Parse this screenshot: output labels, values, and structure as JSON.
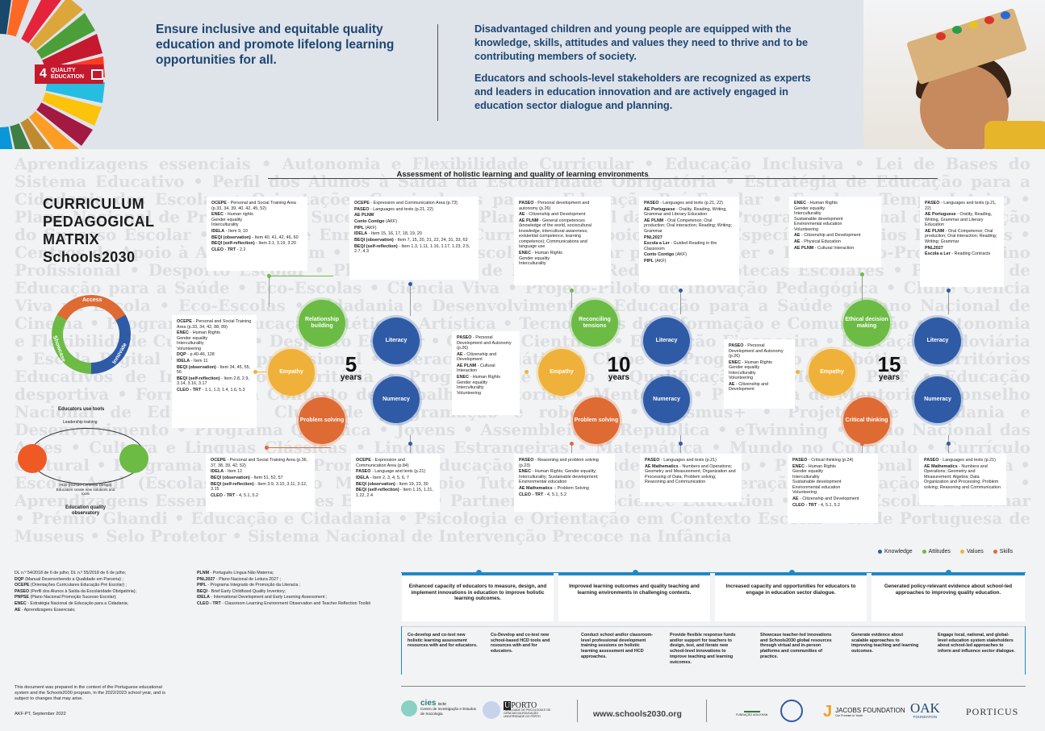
{
  "header": {
    "sdg_badge": {
      "number": "4",
      "label_line1": "QUALITY",
      "label_line2": "EDUCATION"
    },
    "goal": "Ensure inclusive and equitable quality education and promote lifelong learning opportunities for all.",
    "vision_1": "Disadvantaged children and young people are equipped with the knowledge, skills,  attitudes and values they need to thrive and to be contributing members of society.",
    "vision_2": "Educators and schools-level stakeholders are recognized as experts and leaders in education innovation and are actively engaged in education sector dialogue and planning."
  },
  "background_words": "Aprendizagens essenciais • Autonomia e Flexibilidade Curricular • Educação Inclusiva • Lei de Bases do Sistema Educativo • Perfil dos Alunos à Saída da Escolaridade Obrigatória • Estratégia de Educação para a Cidadania das Escolas • Orientações Curriculares para a Educação Pré-Escolar • Escola a Tempo Inteiro • Plano Nacional de Promoção do Sucesso Escolar • Plano Nacional das Artes • Programa Nacional de Promoção do Sucesso Escolar • Projeto de Enriquecimento Curricular • Apoio Tutorial Específico • Apoios Educativos • Centros de Apoio à Aprendizagem • Plano 21|23 Escola+ • Avaliar para aprender • Informação-Prova • Ensino Profissional • Desporto Escolar • Plano Nacional de Leitura • Rede de Bibliotecas Escolares • Programa de Educação para a Saúde • Eco-Escolas • Ciência Viva • Projeto-Piloto de Inovação Pedagógica • Clube Ciência Viva na Escola • Eco-Escolas • Cidadania e Desenvolvimento • Educação para a Saúde • Plano Nacional de Cinema • Programa de Educação Estética e Artística • Tecnologias de Informação e Comunicação • Autonomia e Flexibilidade Curricular • Desporto Escolar • Cultura Científica • Educação Financeira • Educação Rodoviária • Escola Digital • Ensino profissional • Literacia Mediática • Clube de Programação e Robótica • Territórios Educativos de Intervenção Prioritária • Programa de Apoio e Qualificação da Medida PIEF • Educação desportiva • Formação em Contexto de Trabalho • Tutorias • Mentorias • Programa de Mentoria • Conselho Nacional de Educação • Clube de programação e robótica • Erasmus+ • Projetos de Cidadania e Desenvolvimento • Programa Qualifica • Jovens • Assembleia da República • eTwinning • Plano Nacional das Artes • Cultura e Linguas Clássicas • Linguas Estrangeiras • Matemática • Mundo no Currículo • Currículo Cultural • Programa de Apoio à Promoção e Educação para a Saúde • Território • Plano Nacional de Leitura • Escola Azul (Escolas) • Roteiro Mais • Apoio Tutorial • Plano de Recuperação • Educação Especial • Aprendizagens Essenciais • Clubes Europeus • Partnerships for Science Education • Prémio Escolas a Ensinar • Prémio Ghandi • Educação e Cidadania • Psicologia e Orientação em Contexto Escolar • Rede Portuguesa de Museus • Selo Protetor • Sistema Nacional de Intervenção Precoce na Infância",
  "title": {
    "line1": "CURRICULUM",
    "line2": "PEDAGOGICAL",
    "line3": "MATRIX",
    "line4": "Schools2030"
  },
  "assessment_title": "Assessment of holistic learning and quality of learning environments",
  "cycle": {
    "access": "Access",
    "showcase": "Showcase",
    "innovate": "Innovate"
  },
  "hcd": {
    "label_top": "Educators use tools",
    "label_leadership": "Leadership training",
    "label_caption": "HCD (Human-Centered Design) Educators create new solutions and tools",
    "label_bottom": "Education quality observatory"
  },
  "circles": {
    "relationship": "Relationship building",
    "literacy": "Literacy",
    "empathy": "Empathy",
    "numeracy": "Numeracy",
    "problem": "Problem solving",
    "reconciling": "Reconciling tensions",
    "ethical": "Ethical decision making",
    "critical": "Critical thinking"
  },
  "ages": {
    "a5": "5",
    "a10": "10",
    "a15": "15",
    "unit": "years"
  },
  "cards": {
    "c5_top_left": [
      "<b>OCEPE</b> - Personal and Social Training Area (p.33, 34, 39, 40, 42, 45, 52)",
      "<b>ENEC</b> - Human rights<br>Gender equality<br>Interculturality",
      "<b>IDELA</b> - Item 9, 10",
      "<b>BEQI (observation)</b> - Item 40, 41, 42, 46, 60",
      "<b>BEQI (self-reflection)</b> - Item 3.1, 3.19, 3.20",
      "<b>CLEO - TRT</b> - 2.2"
    ],
    "c5_top_right": [
      "<b>OCEPE</b> - Expression and Communication Area (p.73)",
      "<b>PASEO</b> - Languages and texts (p.21, 22)",
      "<b>AE PLNM</b>",
      "<b>Conto Contigo</b> (AKF)",
      "<b>PIPL</b> (AKF)",
      "<b>IDELA</b> - Item 15, 16, 17, 18, 19, 20",
      "<b>BEQI (observation)</b> - Item 7, 15, 20, 21, 22, 24, 31, 33, 63",
      "<b>BEQI (self-reflection)</b> - Item 1.3, 1.11, 1.16, 1.17, 1.23, 2.5, 2.7, 4.3"
    ],
    "c5_left": [
      "<b>OCEPE</b> - Personal and Social Training Area (p.33, 34, 42, 88, 89)",
      "<b>ENEC</b> - Human Rights<br>Gender equality<br>Interculturality<br>Volunteering",
      "<b>DQP</b> - p.40-46, 128",
      "<b>IDELA</b> - Item 11",
      "<b>BEQI (observation)</b> - Item 34, 45, 55, 56",
      "<b>BEQI (self-reflection)</b> - Item 2.8, 2.9, 3.14, 3.16, 3.17",
      "<b>CLEO - TRT</b> - 1.1, 1.3, 1.4, 1.6, 5.3"
    ],
    "c5_bottom_left": [
      "<b>OCEPE</b> - Personal and Social Training Area (p.36, 37, 38, 39, 42, 52)",
      "<b>IDELA</b> - Item 12",
      "<b>BEQI (observation)</b> - Item 51, 52, 57",
      "<b>BEQI (self-reflection)</b> - Item 3.9, 3.10, 3.11, 3.12, 3.15",
      "<b>CLEO - TRT</b> - 4, 5.1, 5.2"
    ],
    "c5_bottom_right": [
      "<b>OCEPE</b> - Expression and Communication Area (p.84)",
      "<b>PASEO</b> - Language and texts (p.21)",
      "<b>IDELA</b> - Item 2, 3, 4, 5, 6, 7",
      "<b>BEQI (observation)</b> - Item 19, 23, 30",
      "<b>BEQI (self-reflection)</b> - Item 1.15, 1.21, 1.22, 2.4"
    ],
    "c10_top_left": [
      "<b>PASEO</b> - Personal development and autonomy (p.26)",
      "<b>AE</b> - Citizenship and Development",
      "<b>AE PLNM</b> - General competences (knowledge of the world, sociocultural knowledge, intercultural awareness, existential competence, learning competence); Communications and language use",
      "<b>ENEC</b> - Human Rights<br>Gender equality<br>Interculturality"
    ],
    "c10_top_right": [
      "<b>PASEO</b> - Languages and texts (p.21, 22)",
      "<b>AE Portuguese</b> - Orality, Reading, Writing, Grammar and Literary Education",
      "<b>AE PLNM</b> - Oral Competence; Oral production; Oral interaction; Reading; Writing; Grammar",
      "<b>PNL2027</b>",
      "<b>Escola a Ler</b> - Guided Reading in the Classroom",
      "<b>Conto Contigo</b> (AKF)",
      "<b>PIPL</b> (AKF)"
    ],
    "c10_left": [
      "<b>PASEO</b> - Personal Development and Autonomy (p.26)",
      "<b>AE</b> - Citizenship and Development",
      "<b>AE PLNM</b> - Cultural Interaction",
      "<b>ENEC</b> - Human Rights<br>Gender equality<br>Interculturality<br>Volunteering"
    ],
    "c10_bottom_left": [
      "<b>PASEO</b> - Reasoning and problem solving (p.23)",
      "<b>ENEC</b> - Human Rights; Gender equality; Interculturality; Sustainable development; Environmental education",
      "<b>AE Mathematics</b> – Problem Solving",
      "<b>CLEO - TRT</b> - 4, 5.1, 5.2"
    ],
    "c10_bottom_right": [
      "<b>PASEO</b> - Languages and texts (p.21)",
      "<b>AE Mathematics</b> - Numbers and Operations; Geometry and Measurement; Organization and Processing of Data; Problem solving; Reasoning and Communication"
    ],
    "c15_top_left": [
      "<b>ENEC</b> - Human Rights<br>Gender equality<br>Interculturality<br>Sustainable development<br>Environmental education<br>Volunteering",
      "<b>AE</b> - Citizenship and Development",
      "<b>AE</b> - Physical Education",
      "<b>AE PLNM</b> - Cultural Interaction"
    ],
    "c15_top_right": [
      "<b>PASEO</b> - Languages and texts (p.21, 22)",
      "<b>AE Portuguese</b> - Orality, Reading, Writing, Grammar and Literary Education",
      "<b>AE PLNM</b> - Oral Competence; Oral production; Oral interaction; Reading; Writing; Grammar",
      "<b>PNL2027</b>",
      "<b>Escola a Ler</b> - Reading Contracts"
    ],
    "c15_left": [
      "<b>PASEO</b> - Personal Development and Autonomy (p.26)",
      "<b>ENEC</b> - Human Rights<br>Gender equality<br>Interculturality<br>Volunteering",
      "<b>AE</b> - Citizenship and Development"
    ],
    "c15_bottom_left": [
      "<b>PASEO</b> - Critical thinking (p.24)",
      "<b>ENEC</b> - Human Rights<br>Gender equality<br>Interculturality<br>Sustainable development<br>Environmental education<br>Volunteering",
      "<b>AE</b> - Citizenship and Development",
      "<b>CLEO - TRT</b> - 4, 5.1, 5.2"
    ],
    "c15_bottom_right": [
      "<b>PASEO</b> - Languages and texts (p.21)",
      "<b>AE Mathematics</b> - Numbers and Operations; Geometry and Measurement; Algebra; Data Organization and Processing; Problem solving; Reasoning and Communication"
    ]
  },
  "legend": {
    "knowledge": "Knowledge",
    "attitudes": "Attitudes",
    "values": "Values",
    "skills": "Skills"
  },
  "colors": {
    "knowledge": "#2f5aa6",
    "attitudes": "#6cbb45",
    "values": "#f0b13a",
    "skills": "#de6a34",
    "outcome": "#1e88c7"
  },
  "abbreviations_left": [
    "DL n.º 54/2018 de 6 de julho; DL n.º 55/2018 de 6 de julho;",
    "<b>DQP</b> (Manual Desenvolvendo a Qualidade em Parceria) ;",
    "<b>OCEPE</b> (Orientações Curriculares Educação Pré Escolar) ;",
    "<b>PASEO</b> (Perfil dos Alunos à Saída da Escolaridade Obrigatória);",
    "<b>PNPSE</b> (Plano Nacional Promoção Sucesso Escolar);",
    "<b>ENEC</b> - Estratégia Nacional de Educação para a Cidadania;",
    "<b>AE</b> - Aprendizagens Essenciais;"
  ],
  "abbreviations_right": [
    "<b>PLNM</b> - Português Língua Não Materna;",
    "<b>PNL2027</b> - Plano Nacional de Leitura 2027 ;",
    "<b>PIPL</b> - Programa Integrado de Promoção da Literacia ;",
    "<b>BEQI</b> - Brief Early Childhood Quality Inventory;",
    "<b>IDELA</b> - International Development and Early Learning Assessment ;",
    "<b>CLEO - TRT</b> - Classroom Learning Environment Observation and Teacher Reflection Toolkit"
  ],
  "outcomes": [
    "Enhanced capacity of educators to measure, design, and implement innovations in education to improve holistic learning outcomes.",
    "Improved learning outcomes and quality teaching and learning environments in challenging contexts.",
    "Increased capacity and opportunities for educators to engage in education sector dialogue.",
    "Generated policy-relevant evidence about school-led approaches to improving quality education."
  ],
  "activities": [
    "Co-develop and co-test new holistic learning assessment resources with and for educators.",
    "Co-Develop and co-test new school-based HCD tools and resources with and for educators.",
    "Conduct school and/or classroom-level professional development training sessions on holistic learning assessment and HCD approaches.",
    "Provide flexible response funds and/or support for teachers to design, test, and iterate new school-level innovations to improve teaching and learning outcomes.",
    "Showcase teacher-led innovations and Schools2030 global resources through virtual and in-person platforms and communities of practice.",
    "Generate evidence about scalable approaches to improving teaching and learning outcomes.",
    "Engage local, national, and global-level education system stakeholders about school-led approaches to inform and influence sector dialogue."
  ],
  "footer": {
    "note": "This document was prepared in the context of the Portuguese educational system and the Schools2030 program, in the 2022/2023 school year, and is subject to changes that may arise.",
    "date": "AKF-PT, September 2022",
    "cies": "cies",
    "cies_sub": "iscte",
    "cies_name": "Centro de Investigação e Estudos de Sociologia",
    "porto": "PORTO",
    "porto_letter": "U",
    "porto_name": "FACULDADE DE PSICOLOGIA E DE CIÊNCIAS DA EDUCAÇÃO UNIVERSIDADE DO PORTO",
    "url": "www.schools2030.org",
    "aga_khan": "FUNDAÇÃO AGA KHAN",
    "jacobs": "JACOBS FOUNDATION",
    "jacobs_tag": "Our Promise to Youth",
    "oak": "OAK",
    "oak_sub": "FOUNDATION",
    "porticus": "PORTICUS"
  }
}
